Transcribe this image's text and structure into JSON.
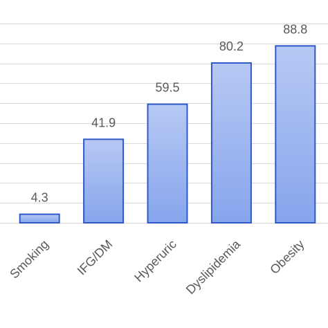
{
  "chart_data": {
    "type": "bar",
    "title": "",
    "xlabel": "",
    "ylabel": "",
    "categories": [
      "Smoking",
      "IFG/DM",
      "Hyperuric",
      "Dyslipidemia",
      "Obesity"
    ],
    "values": [
      4.3,
      41.9,
      59.5,
      80.2,
      88.8
    ],
    "data_labels": [
      "4.3",
      "41.9",
      "59.5",
      "80.2",
      "88.8"
    ],
    "ylim": [
      0,
      100
    ],
    "y_tick_step": 10,
    "grid": true,
    "legend": "none",
    "colors": {
      "bar_fill_top": "#b7c9f4",
      "bar_fill_bottom": "#86a5ec",
      "bar_stroke": "#2f58c9",
      "grid": "#d9d9d9",
      "label": "#595959"
    }
  }
}
